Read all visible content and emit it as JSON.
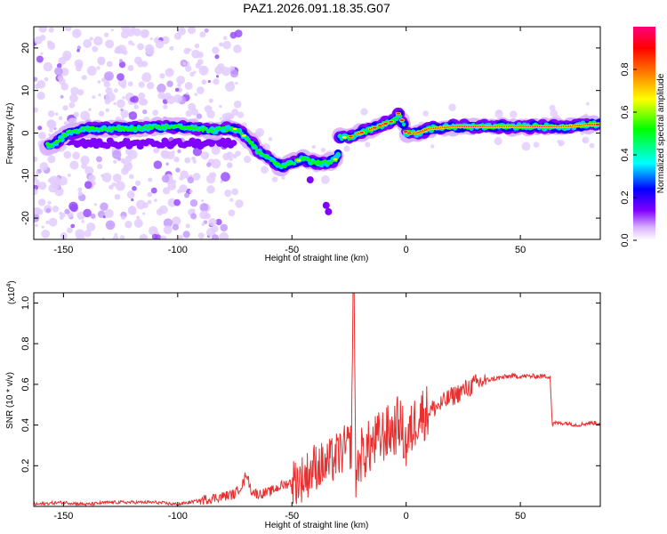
{
  "title": "PAZ1.2026.091.18.35.G07",
  "chart_data": [
    {
      "type": "heatmap",
      "xlabel": "Height of straight line (km)",
      "ylabel": "Frequency (Hz)",
      "xlim": [
        -163,
        85
      ],
      "ylim": [
        -25,
        25
      ],
      "xticks": [
        -150,
        -100,
        -50,
        0,
        50
      ],
      "yticks": [
        -20,
        -10,
        0,
        10,
        20
      ],
      "colorbar": {
        "label": "Normalized spectral amplitude",
        "range": [
          0,
          1
        ],
        "ticks": [
          "0.0",
          "0.2",
          "0.4",
          "0.6",
          "0.8"
        ],
        "colors": [
          "#ffffff",
          "#d9b3ff",
          "#8000ff",
          "#0000ff",
          "#00ffff",
          "#00ff00",
          "#ffff00",
          "#ff8000",
          "#ff0000",
          "#ff0080"
        ]
      },
      "ridge": {
        "x": [
          -155,
          -148,
          -140,
          -130,
          -120,
          -110,
          -100,
          -90,
          -85,
          -80,
          -75,
          -70,
          -65,
          -60,
          -55,
          -50,
          -45,
          -40,
          -35,
          -30,
          -29,
          -25,
          -20,
          -15,
          -10,
          -5,
          -3,
          0,
          5,
          10,
          20,
          30,
          40,
          50,
          60,
          70,
          80,
          85
        ],
        "y": [
          -3,
          0,
          1,
          1,
          1,
          1.5,
          1.5,
          1,
          0.5,
          1,
          1,
          -1,
          -4,
          -6,
          -8,
          -7,
          -6,
          -7,
          -7,
          -6,
          -1,
          -1,
          0,
          1,
          2,
          3,
          5,
          0,
          0,
          1,
          1.5,
          1.5,
          1.5,
          1.5,
          1.5,
          1.5,
          2,
          2
        ]
      }
    },
    {
      "type": "line",
      "xlabel": "Height of straight line (km)",
      "ylabel": "SNR (10 * v/v)",
      "yscale_label": "(x10",
      "yscale_exp": "4",
      "xlim": [
        -163,
        85
      ],
      "ylim": [
        0,
        1.05
      ],
      "xticks": [
        -150,
        -100,
        -50,
        0,
        50
      ],
      "yticks": [
        "0.2",
        "0.4",
        "0.6",
        "0.8",
        "1.0"
      ],
      "color": "#e83030",
      "series": [
        {
          "x": [
            -163,
            -150,
            -140,
            -130,
            -120,
            -110,
            -100,
            -90,
            -85,
            -80,
            -75,
            -71,
            -70,
            -68,
            -65,
            -60,
            -55,
            -50,
            -45,
            -42,
            -40,
            -35,
            -30,
            -27,
            -24,
            -23,
            -22,
            -20,
            -15,
            -10,
            -5,
            -3,
            0,
            5,
            10,
            15,
            20,
            25,
            30,
            35,
            40,
            45,
            50,
            55,
            60,
            63,
            64,
            65,
            70,
            75,
            80,
            85
          ],
          "y": [
            0.01,
            0.02,
            0.01,
            0.02,
            0.02,
            0.02,
            0.01,
            0.03,
            0.04,
            0.05,
            0.06,
            0.12,
            0.17,
            0.08,
            0.06,
            0.07,
            0.1,
            0.12,
            0.14,
            0.17,
            0.2,
            0.2,
            0.25,
            0.28,
            0.3,
            1.05,
            0.15,
            0.25,
            0.3,
            0.35,
            0.38,
            0.42,
            0.3,
            0.45,
            0.47,
            0.5,
            0.54,
            0.57,
            0.6,
            0.62,
            0.63,
            0.64,
            0.64,
            0.64,
            0.64,
            0.64,
            0.4,
            0.41,
            0.41,
            0.4,
            0.41,
            0.41
          ]
        }
      ]
    }
  ]
}
